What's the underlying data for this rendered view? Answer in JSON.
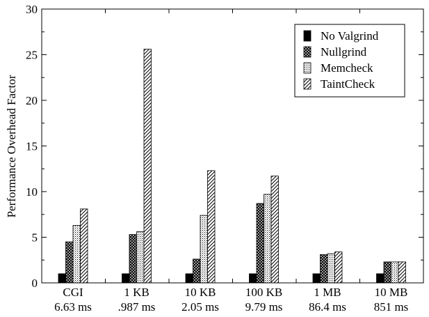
{
  "chart_data": {
    "type": "bar",
    "ylabel": "Performance Overhead Factor",
    "xlabel": "",
    "ylim": [
      0,
      30
    ],
    "y_ticks": [
      0,
      5,
      10,
      15,
      20,
      25,
      30
    ],
    "categories": [
      {
        "label": "CGI",
        "sublabel": "6.63 ms"
      },
      {
        "label": "1 KB",
        "sublabel": ".987 ms"
      },
      {
        "label": "10 KB",
        "sublabel": "2.05 ms"
      },
      {
        "label": "100 KB",
        "sublabel": "9.79 ms"
      },
      {
        "label": "1 MB",
        "sublabel": "86.4 ms"
      },
      {
        "label": "10 MB",
        "sublabel": "851 ms"
      }
    ],
    "series": [
      {
        "name": "No Valgrind",
        "pattern": "solid",
        "values": [
          1.0,
          1.0,
          1.0,
          1.0,
          1.0,
          1.0
        ]
      },
      {
        "name": "Nullgrind",
        "pattern": "crosshatch",
        "values": [
          4.5,
          5.3,
          2.6,
          8.7,
          3.1,
          2.3
        ]
      },
      {
        "name": "Memcheck",
        "pattern": "dots",
        "values": [
          6.3,
          5.6,
          7.4,
          9.7,
          3.2,
          2.3
        ]
      },
      {
        "name": "TaintCheck",
        "pattern": "diagonal",
        "values": [
          8.1,
          25.6,
          12.3,
          11.7,
          3.4,
          2.3
        ]
      }
    ],
    "legend_position": "top-right",
    "grid": false
  }
}
